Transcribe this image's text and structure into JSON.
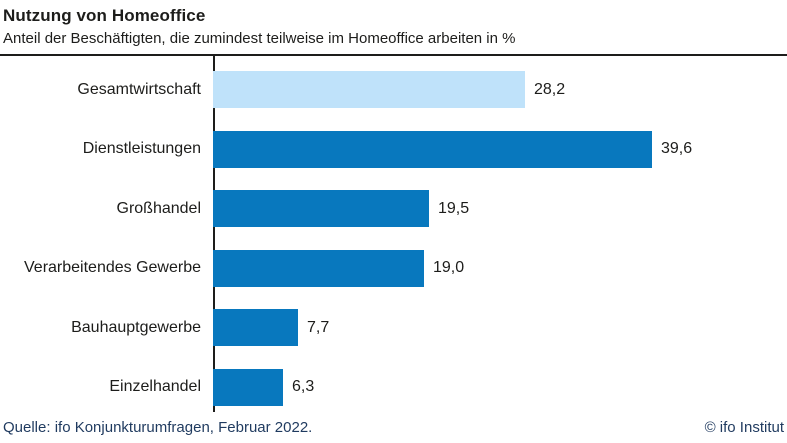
{
  "header": {
    "title": "Nutzung von Homeoffice",
    "subtitle": "Anteil der Beschäftigten, die zumindest teilweise im Homeoffice arbeiten in %"
  },
  "chart_data": {
    "type": "bar",
    "orientation": "horizontal",
    "title": "Nutzung von Homeoffice",
    "subtitle": "Anteil der Beschäftigten, die zumindest teilweise im Homeoffice arbeiten in %",
    "categories": [
      "Gesamtwirtschaft",
      "Dienstleistungen",
      "Großhandel",
      "Verarbeitendes Gewerbe",
      "Bauhauptgewerbe",
      "Einzelhandel"
    ],
    "values": [
      28.2,
      39.6,
      19.5,
      19.0,
      7.7,
      6.3
    ],
    "value_labels": [
      "28,2",
      "39,6",
      "19,5",
      "19,0",
      "7,7",
      "6,3"
    ],
    "xlabel": "",
    "ylabel": "",
    "xlim": [
      0,
      51.8
    ],
    "grid": false,
    "legend": false,
    "bar_colors": [
      "#bfe2fa",
      "#0878be",
      "#0878be",
      "#0878be",
      "#0878be",
      "#0878be"
    ],
    "highlight_category": "Gesamtwirtschaft"
  },
  "colors": {
    "bar_default": "#0878be",
    "bar_highlight": "#bfe2fa",
    "axis": "#1d1d1b",
    "divider": "#1d1d1b",
    "text": "#1d1d1b",
    "footer_text": "#1f3a5f"
  },
  "footer": {
    "source": "Quelle: ifo Konjunkturumfragen, Februar 2022.",
    "copyright": "© ifo Institut"
  }
}
